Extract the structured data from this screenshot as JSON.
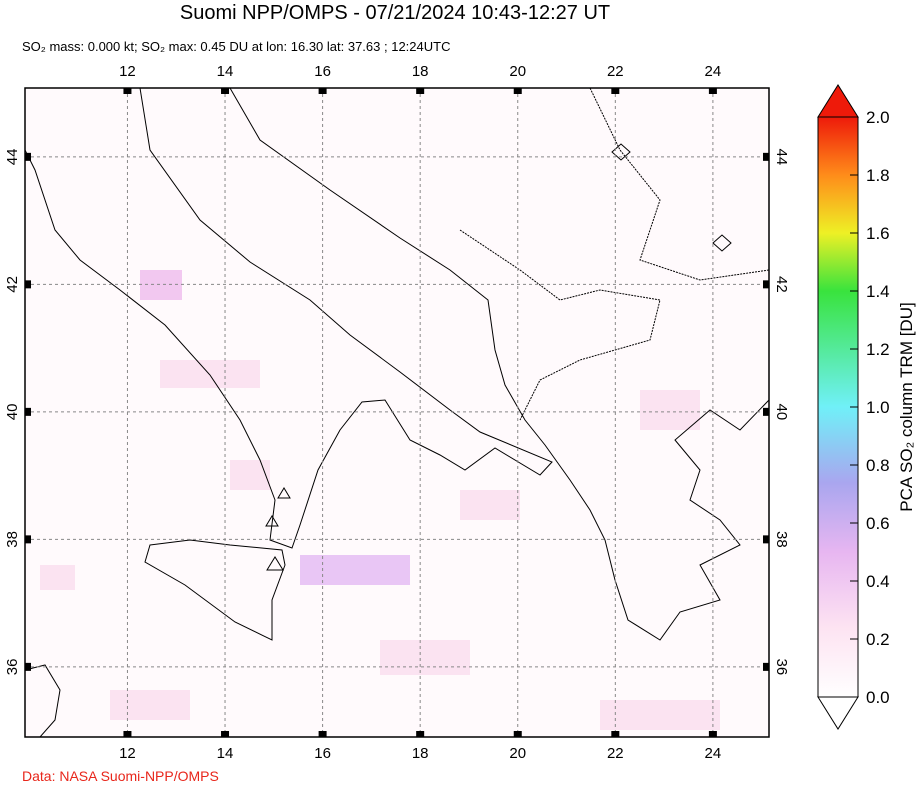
{
  "header": {
    "title": "Suomi NPP/OMPS - 07/21/2024 10:43-12:27 UT",
    "subtitle": "SO₂ mass: 0.000 kt; SO₂ max: 0.45 DU at lon: 16.30 lat: 37.63 ; 12:24UTC"
  },
  "map": {
    "xlim": [
      9.9,
      25.15
    ],
    "ylim": [
      34.9,
      45.08
    ],
    "lon_ticks": [
      12,
      14,
      16,
      18,
      20,
      22,
      24
    ],
    "lat_ticks": [
      36,
      38,
      40,
      42,
      44
    ]
  },
  "colorbar": {
    "label": "PCA SO₂ column TRM [DU]",
    "lim": [
      0,
      2
    ],
    "ticks": [
      {
        "value": 0,
        "label": "0.0"
      },
      {
        "value": 0.2,
        "label": "0.2"
      },
      {
        "value": 0.4,
        "label": "0.4"
      },
      {
        "value": 0.6,
        "label": "0.6"
      },
      {
        "value": 0.8,
        "label": "0.8"
      },
      {
        "value": 1,
        "label": "1.0"
      },
      {
        "value": 1.2,
        "label": "1.2"
      },
      {
        "value": 1.4,
        "label": "1.4"
      },
      {
        "value": 1.6,
        "label": "1.6"
      },
      {
        "value": 1.8,
        "label": "1.8"
      },
      {
        "value": 2,
        "label": "2.0"
      }
    ]
  },
  "footer": {
    "credit": "Data: NASA Suomi-NPP/OMPS"
  }
}
